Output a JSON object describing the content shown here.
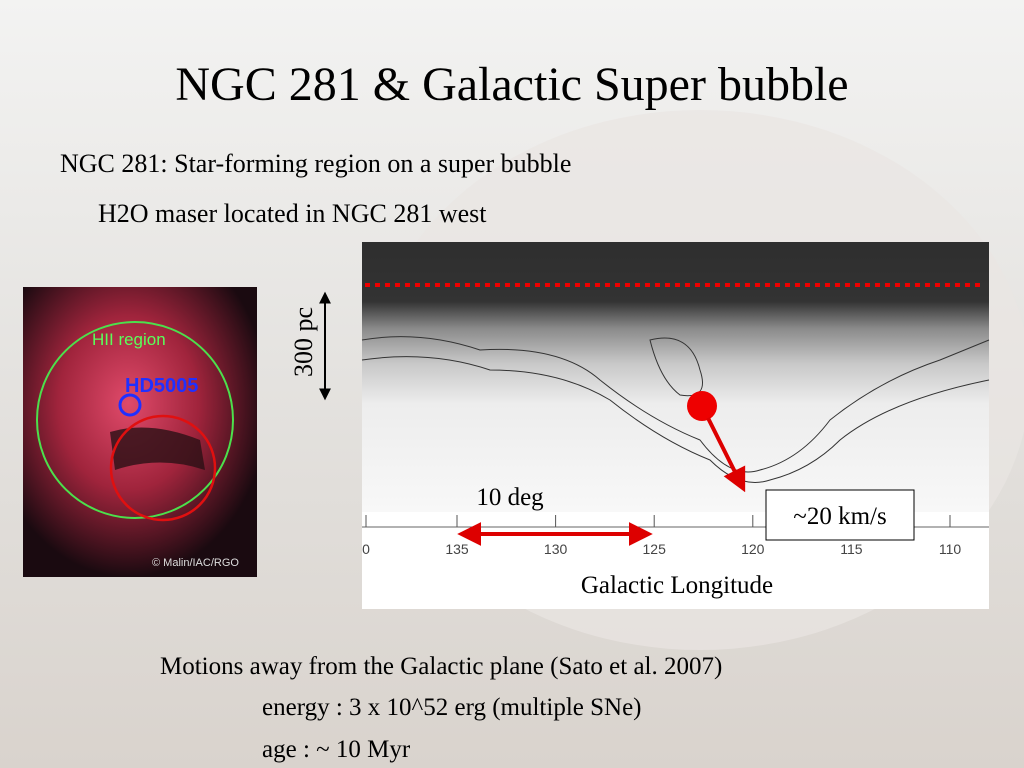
{
  "title": "NGC 281 & Galactic Super bubble",
  "bullets": [
    "NGC 281: Star-forming region on a super bubble",
    "H2O maser located in NGC 281 west"
  ],
  "image": {
    "labels": [
      "HII region",
      "HD5005"
    ],
    "credit": "© Malin/IAC/RGO"
  },
  "figure": {
    "scale_label": "300 pc",
    "angle_label": "10 deg",
    "velocity_label": "~20 km/s",
    "x_axis_label": "Galactic Longitude",
    "x_ticks": [
      "0",
      "135",
      "130",
      "125",
      "120",
      "115",
      "110"
    ]
  },
  "notes": [
    "Motions away from the Galactic plane (Sato et al. 2007)",
    "energy : 3 x 10^52 erg (multiple SNe)",
    "age : ~ 10 Myr"
  ]
}
